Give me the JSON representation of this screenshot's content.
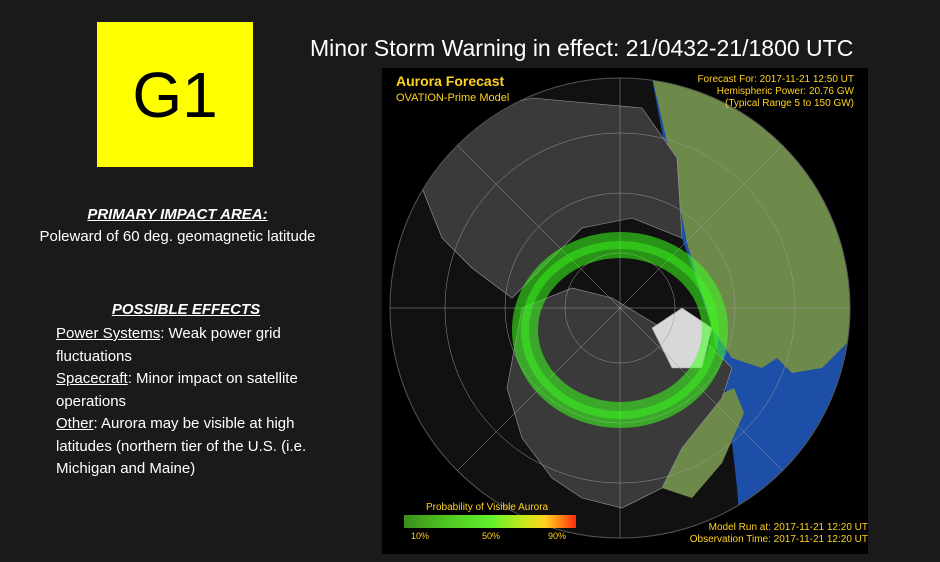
{
  "badge": {
    "label": "G1",
    "color": "#ffff00"
  },
  "headline": "Minor Storm Warning in effect: 21/0432-21/1800 UTC",
  "impact": {
    "title": "PRIMARY IMPACT AREA:",
    "text": "Poleward of 60 deg. geomagnetic latitude"
  },
  "effects": {
    "title": "POSSIBLE EFFECTS",
    "items": [
      {
        "label": "Power Systems",
        "text": ": Weak power grid fluctuations"
      },
      {
        "label": "Spacecraft",
        "text": ": Minor impact on satellite operations"
      },
      {
        "label": "Other",
        "text": ": Aurora may be visible at high latitudes (northern tier of the U.S. (i.e. Michigan and Maine)"
      }
    ]
  },
  "map": {
    "title": "Aurora Forecast",
    "model": "OVATION-Prime Model",
    "forecast_for": "Forecast For: 2017-11-21 12:50 UT",
    "hemispheric_power": "Hemispheric Power: 20.76 GW",
    "typical_range": "(Typical Range 5 to 150 GW)",
    "legend_title": "Probability of Visible Aurora",
    "legend_ticks": [
      "10%",
      "50%",
      "90%"
    ],
    "model_run": "Model Run at: 2017-11-21 12:20 UT",
    "observation_time": "Observation Time: 2017-11-21 12:20 UT",
    "colors": {
      "land_day": "#6e8a4a",
      "land_night": "#3a3a3a",
      "ocean_day": "#1d4ea8",
      "ocean_night": "#111111",
      "aurora": "#3cff1e"
    }
  }
}
